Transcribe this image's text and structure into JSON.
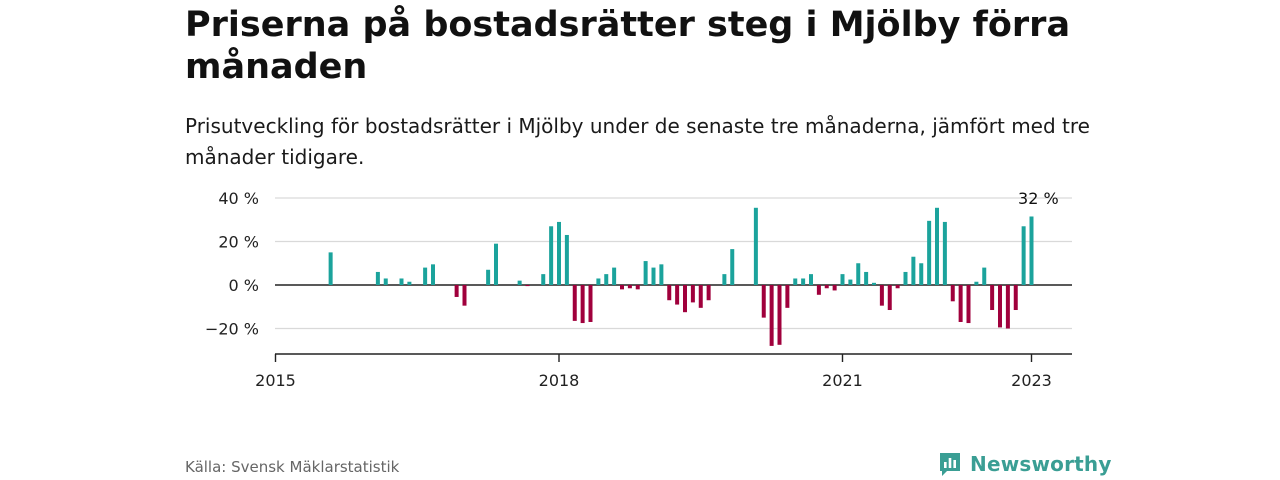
{
  "header": {
    "title": "Priserna på bostadsrätter steg i Mjölby förra månaden",
    "subtitle": "Prisutveckling för bostadsrätter i Mjölby under de senaste tre månaderna, jämfört med tre månader tidigare."
  },
  "footer": {
    "source": "Källa: Svensk Mäklarstatistik",
    "brand": "Newsworthy"
  },
  "colors": {
    "positive": "#1ba39c",
    "negative": "#a0003c",
    "grid": "#d9d9d9",
    "baseline": "#222222",
    "brand": "#3a9e94"
  },
  "chart_data": {
    "type": "bar",
    "x_unit": "month",
    "y_ticks": [
      {
        "value": 40,
        "label": "40 %"
      },
      {
        "value": 20,
        "label": "20 %"
      },
      {
        "value": 0,
        "label": "0 %"
      },
      {
        "value": -20,
        "label": "−20 %"
      }
    ],
    "ylim": [
      -32,
      40
    ],
    "x_ticks": [
      {
        "value": "2015-01",
        "label": "2015"
      },
      {
        "value": "2018-01",
        "label": "2018"
      },
      {
        "value": "2021-01",
        "label": "2021"
      },
      {
        "value": "2023-01",
        "label": "2023"
      }
    ],
    "xlim": [
      "2015-01",
      "2023-05"
    ],
    "annotation": {
      "date": "2023-02",
      "label": "32 %"
    },
    "series": [
      {
        "values": [
          {
            "date": "2015-08",
            "value": 15
          },
          {
            "date": "2016-02",
            "value": 6
          },
          {
            "date": "2016-03",
            "value": 3
          },
          {
            "date": "2016-05",
            "value": 3
          },
          {
            "date": "2016-06",
            "value": 1.5
          },
          {
            "date": "2016-08",
            "value": 8
          },
          {
            "date": "2016-09",
            "value": 9.5
          },
          {
            "date": "2016-12",
            "value": -5.5
          },
          {
            "date": "2017-01",
            "value": -9.5
          },
          {
            "date": "2017-04",
            "value": 7
          },
          {
            "date": "2017-05",
            "value": 19
          },
          {
            "date": "2017-08",
            "value": 2
          },
          {
            "date": "2017-09",
            "value": -0.5
          },
          {
            "date": "2017-11",
            "value": 5
          },
          {
            "date": "2017-12",
            "value": 27
          },
          {
            "date": "2018-01",
            "value": 29
          },
          {
            "date": "2018-02",
            "value": 23
          },
          {
            "date": "2018-03",
            "value": -16.5
          },
          {
            "date": "2018-04",
            "value": -17.5
          },
          {
            "date": "2018-05",
            "value": -17
          },
          {
            "date": "2018-06",
            "value": 3
          },
          {
            "date": "2018-07",
            "value": 5
          },
          {
            "date": "2018-08",
            "value": 8
          },
          {
            "date": "2018-09",
            "value": -2
          },
          {
            "date": "2018-10",
            "value": -1.5
          },
          {
            "date": "2018-11",
            "value": -2
          },
          {
            "date": "2018-12",
            "value": 11
          },
          {
            "date": "2019-01",
            "value": 8
          },
          {
            "date": "2019-02",
            "value": 9.5
          },
          {
            "date": "2019-03",
            "value": -7
          },
          {
            "date": "2019-04",
            "value": -9
          },
          {
            "date": "2019-05",
            "value": -12.5
          },
          {
            "date": "2019-06",
            "value": -8
          },
          {
            "date": "2019-07",
            "value": -10.5
          },
          {
            "date": "2019-08",
            "value": -7
          },
          {
            "date": "2019-10",
            "value": 5
          },
          {
            "date": "2019-11",
            "value": 16.5
          },
          {
            "date": "2020-02",
            "value": 35.5
          },
          {
            "date": "2020-03",
            "value": -15
          },
          {
            "date": "2020-04",
            "value": -28
          },
          {
            "date": "2020-05",
            "value": -27.5
          },
          {
            "date": "2020-06",
            "value": -10.5
          },
          {
            "date": "2020-07",
            "value": 3
          },
          {
            "date": "2020-08",
            "value": 3
          },
          {
            "date": "2020-09",
            "value": 5
          },
          {
            "date": "2020-10",
            "value": -4.5
          },
          {
            "date": "2020-11",
            "value": -1.5
          },
          {
            "date": "2020-12",
            "value": -2.5
          },
          {
            "date": "2021-01",
            "value": 5
          },
          {
            "date": "2021-02",
            "value": 2.5
          },
          {
            "date": "2021-03",
            "value": 10
          },
          {
            "date": "2021-04",
            "value": 6
          },
          {
            "date": "2021-05",
            "value": 1
          },
          {
            "date": "2021-06",
            "value": -9.5
          },
          {
            "date": "2021-07",
            "value": -11.5
          },
          {
            "date": "2021-08",
            "value": -1.5
          },
          {
            "date": "2021-09",
            "value": 6
          },
          {
            "date": "2021-10",
            "value": 13
          },
          {
            "date": "2021-11",
            "value": 10
          },
          {
            "date": "2021-12",
            "value": 29.5
          },
          {
            "date": "2022-01",
            "value": 35.5
          },
          {
            "date": "2022-02",
            "value": 29
          },
          {
            "date": "2022-03",
            "value": -7.5
          },
          {
            "date": "2022-04",
            "value": -17
          },
          {
            "date": "2022-05",
            "value": -17.5
          },
          {
            "date": "2022-06",
            "value": 1.5
          },
          {
            "date": "2022-07",
            "value": 8
          },
          {
            "date": "2022-08",
            "value": -11.5
          },
          {
            "date": "2022-09",
            "value": -19.5
          },
          {
            "date": "2022-10",
            "value": -20
          },
          {
            "date": "2022-11",
            "value": -11.5
          },
          {
            "date": "2022-12",
            "value": 27
          },
          {
            "date": "2023-01",
            "value": 31.5
          }
        ]
      }
    ]
  }
}
